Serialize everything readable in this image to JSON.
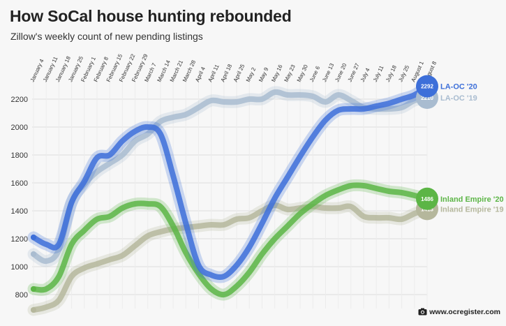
{
  "title": "How SoCal house hunting rebounded",
  "subtitle": "Zillow's weekly count of new pending listings",
  "credit": "www.ocregister.com",
  "colors": {
    "la20": "#3d6fd9",
    "la19": "#a9bcd0",
    "ie20": "#5cb546",
    "ie19": "#b5b79c",
    "grid": "#dddddd"
  },
  "chart_data": {
    "type": "line",
    "x": [
      "January 4",
      "January 11",
      "January 18",
      "January 25",
      "February 1",
      "February 8",
      "February 15",
      "February 22",
      "February 29",
      "March 7",
      "March 14",
      "March 21",
      "March 28",
      "April 4",
      "April 11",
      "April 18",
      "April 25",
      "May 2",
      "May 9",
      "May 16",
      "May 23",
      "May 30",
      "June 6",
      "June 13",
      "June 20",
      "June 27",
      "July 4",
      "July 11",
      "July 18",
      "July 25",
      "August 1",
      "August 8"
    ],
    "ylim": [
      700,
      2300
    ],
    "yticks": [
      800,
      1000,
      1200,
      1400,
      1600,
      1800,
      2000,
      2200
    ],
    "grid": true,
    "series": [
      {
        "name": "LA-OC '19",
        "color_key": "la19",
        "end_label": "2210",
        "values": [
          1090,
          1040,
          1120,
          1460,
          1590,
          1680,
          1740,
          1800,
          1900,
          1950,
          2040,
          2070,
          2090,
          2140,
          2190,
          2180,
          2180,
          2200,
          2200,
          2250,
          2230,
          2230,
          2220,
          2180,
          2230,
          2190,
          2140,
          2130,
          2130,
          2140,
          2190,
          2210
        ]
      },
      {
        "name": "Inland Empire '19",
        "color_key": "ie19",
        "end_label": "1413",
        "values": [
          690,
          710,
          760,
          930,
          990,
          1020,
          1050,
          1080,
          1150,
          1220,
          1250,
          1270,
          1280,
          1290,
          1300,
          1300,
          1340,
          1350,
          1400,
          1440,
          1410,
          1420,
          1430,
          1420,
          1420,
          1430,
          1360,
          1350,
          1350,
          1340,
          1380,
          1413
        ]
      },
      {
        "name": "Inland Empire '20",
        "color_key": "ie20",
        "end_label": "1486",
        "values": [
          840,
          840,
          930,
          1160,
          1260,
          1340,
          1360,
          1420,
          1450,
          1450,
          1430,
          1290,
          1100,
          950,
          840,
          800,
          860,
          960,
          1090,
          1200,
          1290,
          1380,
          1450,
          1510,
          1550,
          1580,
          1580,
          1560,
          1540,
          1530,
          1510,
          1486
        ]
      },
      {
        "name": "LA-OC '20",
        "color_key": "la20",
        "end_label": "2292",
        "values": [
          1210,
          1160,
          1160,
          1460,
          1610,
          1780,
          1800,
          1900,
          1970,
          2000,
          1950,
          1650,
          1310,
          1010,
          940,
          930,
          1010,
          1140,
          1310,
          1490,
          1640,
          1790,
          1930,
          2050,
          2120,
          2130,
          2130,
          2150,
          2170,
          2200,
          2230,
          2292
        ]
      }
    ]
  }
}
